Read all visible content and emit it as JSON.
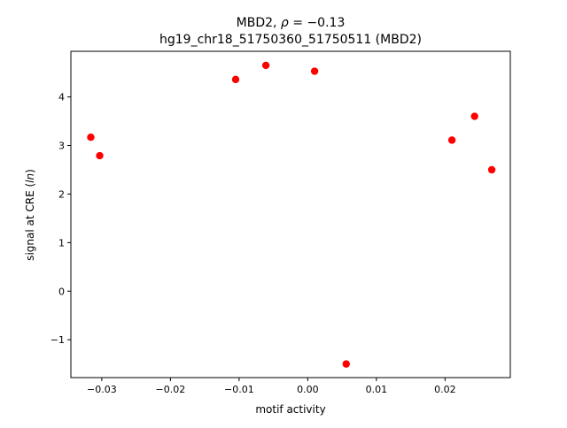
{
  "chart_data": {
    "type": "scatter",
    "title_line1_prefix": "MBD2, ",
    "title_line1_rho": "ρ",
    "title_line1_suffix": " = −0.13",
    "title_line2": "hg19_chr18_51750360_51750511 (MBD2)",
    "xlabel": "motif activity",
    "ylabel_prefix": "signal at CRE (",
    "ylabel_italic": "ln",
    "ylabel_suffix": ")",
    "xlim": [
      -0.0345,
      0.0295
    ],
    "ylim": [
      -1.78,
      4.94
    ],
    "xticks": [
      {
        "value": -0.03,
        "label": "−0.03"
      },
      {
        "value": -0.02,
        "label": "−0.02"
      },
      {
        "value": -0.01,
        "label": "−0.01"
      },
      {
        "value": 0.0,
        "label": "0.00"
      },
      {
        "value": 0.01,
        "label": "0.01"
      },
      {
        "value": 0.02,
        "label": "0.02"
      }
    ],
    "yticks": [
      {
        "value": -1,
        "label": "−1"
      },
      {
        "value": 0,
        "label": "0"
      },
      {
        "value": 1,
        "label": "1"
      },
      {
        "value": 2,
        "label": "2"
      },
      {
        "value": 3,
        "label": "3"
      },
      {
        "value": 4,
        "label": "4"
      }
    ],
    "grid": false,
    "marker_color": "#ff0000",
    "points": [
      {
        "x": -0.0316,
        "y": 3.17
      },
      {
        "x": -0.0303,
        "y": 2.79
      },
      {
        "x": -0.0105,
        "y": 4.36
      },
      {
        "x": -0.0061,
        "y": 4.65
      },
      {
        "x": 0.001,
        "y": 4.53
      },
      {
        "x": 0.0056,
        "y": -1.5
      },
      {
        "x": 0.021,
        "y": 3.11
      },
      {
        "x": 0.0243,
        "y": 3.6
      },
      {
        "x": 0.0268,
        "y": 2.5
      }
    ]
  }
}
